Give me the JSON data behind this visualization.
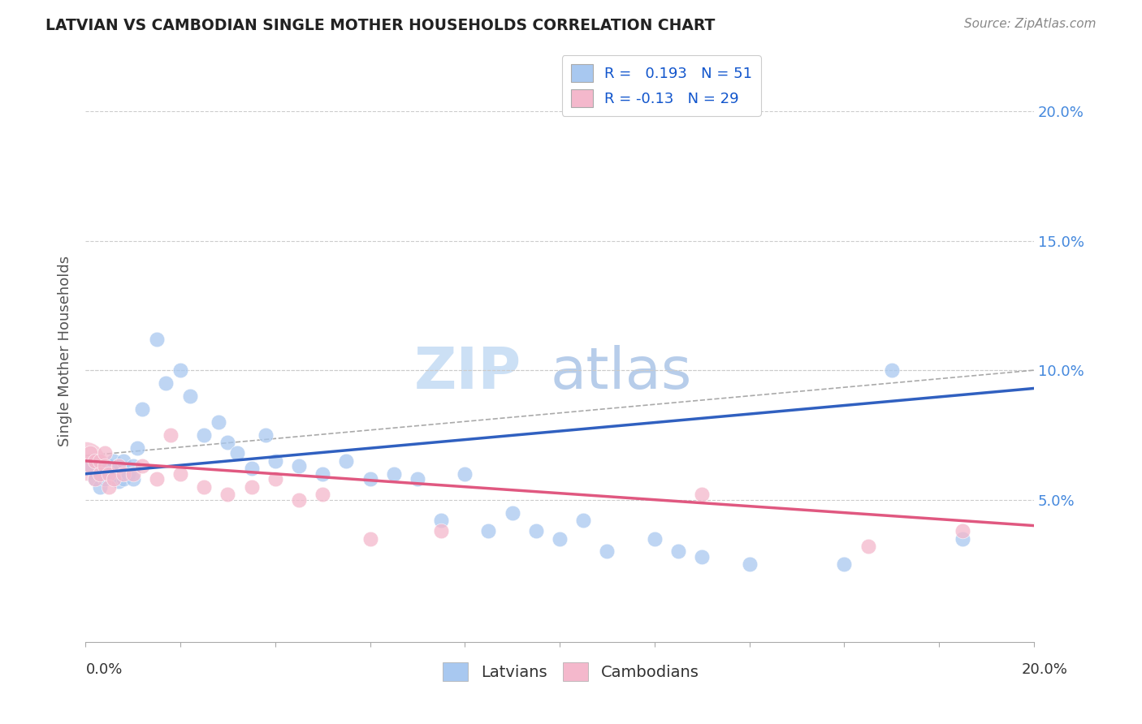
{
  "title": "LATVIAN VS CAMBODIAN SINGLE MOTHER HOUSEHOLDS CORRELATION CHART",
  "source": "Source: ZipAtlas.com",
  "ylabel": "Single Mother Households",
  "xlim": [
    0.0,
    0.2
  ],
  "ylim": [
    -0.005,
    0.22
  ],
  "yticks": [
    0.05,
    0.1,
    0.15,
    0.2
  ],
  "ytick_labels": [
    "5.0%",
    "10.0%",
    "15.0%",
    "20.0%"
  ],
  "latvian_R": 0.193,
  "latvian_N": 51,
  "cambodian_R": -0.13,
  "cambodian_N": 29,
  "latvian_color": "#a8c8f0",
  "cambodian_color": "#f4b8cc",
  "latvian_line_color": "#3060c0",
  "cambodian_line_color": "#e05880",
  "background_color": "#ffffff",
  "latvians_data": [
    [
      0.001,
      0.063
    ],
    [
      0.002,
      0.058
    ],
    [
      0.003,
      0.06
    ],
    [
      0.003,
      0.055
    ],
    [
      0.004,
      0.063
    ],
    [
      0.004,
      0.058
    ],
    [
      0.005,
      0.06
    ],
    [
      0.005,
      0.063
    ],
    [
      0.006,
      0.06
    ],
    [
      0.006,
      0.065
    ],
    [
      0.007,
      0.063
    ],
    [
      0.007,
      0.057
    ],
    [
      0.008,
      0.058
    ],
    [
      0.008,
      0.065
    ],
    [
      0.009,
      0.06
    ],
    [
      0.01,
      0.063
    ],
    [
      0.01,
      0.058
    ],
    [
      0.011,
      0.07
    ],
    [
      0.012,
      0.085
    ],
    [
      0.015,
      0.112
    ],
    [
      0.017,
      0.095
    ],
    [
      0.02,
      0.1
    ],
    [
      0.022,
      0.09
    ],
    [
      0.025,
      0.075
    ],
    [
      0.028,
      0.08
    ],
    [
      0.03,
      0.072
    ],
    [
      0.032,
      0.068
    ],
    [
      0.035,
      0.062
    ],
    [
      0.038,
      0.075
    ],
    [
      0.04,
      0.065
    ],
    [
      0.045,
      0.063
    ],
    [
      0.05,
      0.06
    ],
    [
      0.055,
      0.065
    ],
    [
      0.06,
      0.058
    ],
    [
      0.065,
      0.06
    ],
    [
      0.07,
      0.058
    ],
    [
      0.075,
      0.042
    ],
    [
      0.08,
      0.06
    ],
    [
      0.085,
      0.038
    ],
    [
      0.09,
      0.045
    ],
    [
      0.095,
      0.038
    ],
    [
      0.1,
      0.035
    ],
    [
      0.105,
      0.042
    ],
    [
      0.11,
      0.03
    ],
    [
      0.12,
      0.035
    ],
    [
      0.125,
      0.03
    ],
    [
      0.13,
      0.028
    ],
    [
      0.14,
      0.025
    ],
    [
      0.16,
      0.025
    ],
    [
      0.17,
      0.1
    ],
    [
      0.185,
      0.035
    ]
  ],
  "cambodians_data": [
    [
      0.001,
      0.068
    ],
    [
      0.001,
      0.063
    ],
    [
      0.002,
      0.065
    ],
    [
      0.002,
      0.058
    ],
    [
      0.003,
      0.065
    ],
    [
      0.003,
      0.06
    ],
    [
      0.004,
      0.068
    ],
    [
      0.004,
      0.063
    ],
    [
      0.005,
      0.06
    ],
    [
      0.005,
      0.055
    ],
    [
      0.006,
      0.058
    ],
    [
      0.007,
      0.063
    ],
    [
      0.008,
      0.06
    ],
    [
      0.01,
      0.06
    ],
    [
      0.012,
      0.063
    ],
    [
      0.015,
      0.058
    ],
    [
      0.018,
      0.075
    ],
    [
      0.02,
      0.06
    ],
    [
      0.025,
      0.055
    ],
    [
      0.03,
      0.052
    ],
    [
      0.035,
      0.055
    ],
    [
      0.04,
      0.058
    ],
    [
      0.045,
      0.05
    ],
    [
      0.05,
      0.052
    ],
    [
      0.06,
      0.035
    ],
    [
      0.075,
      0.038
    ],
    [
      0.13,
      0.052
    ],
    [
      0.165,
      0.032
    ],
    [
      0.185,
      0.038
    ]
  ],
  "latvian_line": [
    [
      0.0,
      0.06
    ],
    [
      0.2,
      0.093
    ]
  ],
  "cambodian_line": [
    [
      0.0,
      0.065
    ],
    [
      0.2,
      0.04
    ]
  ],
  "upper_dashed_line": [
    [
      0.0,
      0.067
    ],
    [
      0.2,
      0.1
    ]
  ],
  "marker_size": 180,
  "marker_size_large": 800
}
